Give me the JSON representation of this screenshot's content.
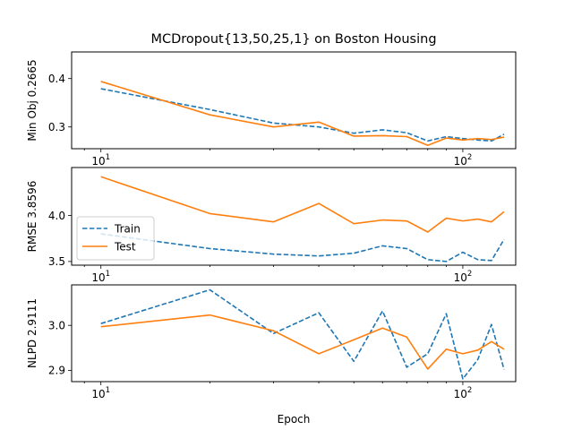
{
  "chart_data": {
    "type": "line",
    "title": "MCDropout{13,50,25,1} on Boston Housing",
    "xlabel": "Epoch",
    "xscale": "log",
    "xlim": [
      8.3,
      140
    ],
    "x_major_ticks": [
      {
        "value": 10,
        "base": "10",
        "exp": "1"
      },
      {
        "value": 100,
        "base": "10",
        "exp": "2"
      }
    ],
    "x": [
      10,
      20,
      30,
      40,
      50,
      60,
      70,
      80,
      90,
      100,
      110,
      120,
      130
    ],
    "colors": {
      "train": "#1f77b4",
      "test": "#ff7f0e"
    },
    "legend": {
      "panel": 1,
      "loc": "lower-left"
    },
    "panels": [
      {
        "ylabel": "Min Obj 0.2665",
        "ylim": [
          0.255,
          0.455
        ],
        "yticks": [
          0.3,
          0.4
        ],
        "ytick_labels": [
          "0.3",
          "0.4"
        ],
        "series": [
          {
            "name": "Train",
            "style": "dashed",
            "values": [
              0.379,
              0.336,
              0.308,
              0.3,
              0.287,
              0.294,
              0.288,
              0.271,
              0.28,
              0.276,
              0.273,
              0.271,
              0.285
            ]
          },
          {
            "name": "Test",
            "style": "solid",
            "values": [
              0.394,
              0.325,
              0.3,
              0.31,
              0.281,
              0.282,
              0.28,
              0.262,
              0.277,
              0.273,
              0.276,
              0.274,
              0.279
            ]
          }
        ]
      },
      {
        "ylabel": "RMSE 3.8596",
        "ylim": [
          3.46,
          4.52
        ],
        "yticks": [
          3.5,
          4.0
        ],
        "ytick_labels": [
          "3.5",
          "4.0"
        ],
        "series": [
          {
            "name": "Train",
            "style": "dashed",
            "values": [
              3.8,
              3.64,
              3.58,
              3.56,
              3.59,
              3.67,
              3.64,
              3.52,
              3.5,
              3.6,
              3.52,
              3.51,
              3.74
            ]
          },
          {
            "name": "Test",
            "style": "solid",
            "values": [
              4.42,
              4.02,
              3.93,
              4.13,
              3.91,
              3.95,
              3.94,
              3.82,
              3.97,
              3.94,
              3.96,
              3.93,
              4.04
            ]
          }
        ]
      },
      {
        "ylabel": "NLPD 2.9111",
        "ylim": [
          2.875,
          3.09
        ],
        "yticks": [
          2.9,
          3.0
        ],
        "ytick_labels": [
          "2.9",
          "3.0"
        ],
        "series": [
          {
            "name": "Train",
            "style": "dashed",
            "values": [
              3.004,
              3.079,
              2.982,
              3.028,
              2.92,
              3.032,
              2.907,
              2.937,
              3.026,
              2.881,
              2.924,
              3.002,
              2.902
            ]
          },
          {
            "name": "Test",
            "style": "solid",
            "values": [
              2.997,
              3.023,
              2.988,
              2.937,
              2.968,
              2.994,
              2.974,
              2.903,
              2.947,
              2.937,
              2.945,
              2.964,
              2.947
            ]
          }
        ]
      }
    ]
  }
}
